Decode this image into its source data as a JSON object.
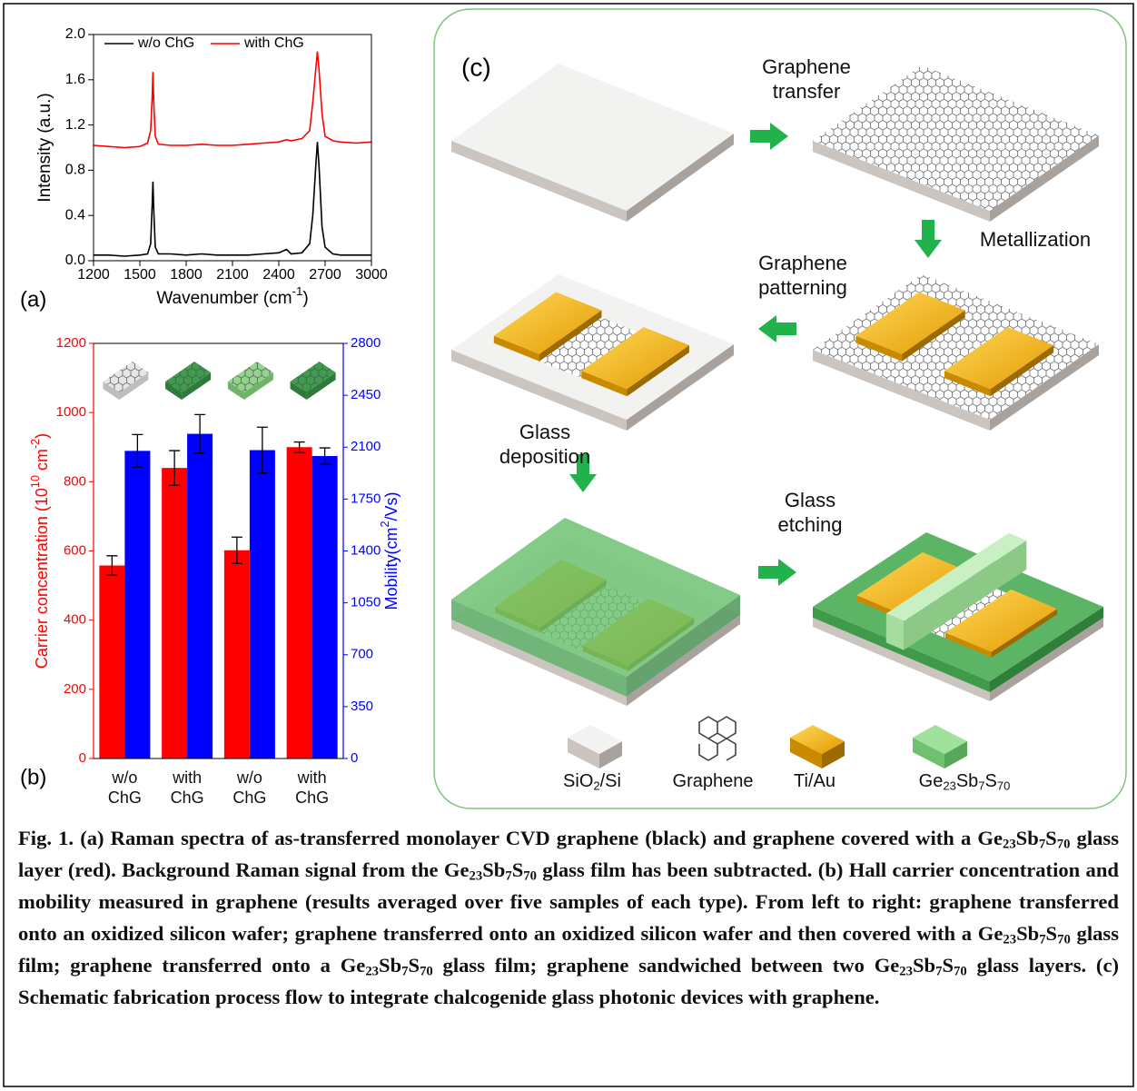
{
  "chart_data": [
    {
      "type": "line",
      "panel_label": "(a)",
      "ylabel": "Intensity (a.u.)",
      "xlabel": [
        "Wavenumber (cm",
        "-1",
        ")"
      ],
      "x": [
        1200,
        1300,
        1400,
        1500,
        1550,
        1570,
        1580,
        1585,
        1590,
        1600,
        1620,
        1700,
        1800,
        1900,
        2000,
        2100,
        2200,
        2300,
        2400,
        2450,
        2480,
        2550,
        2600,
        2620,
        2640,
        2650,
        2660,
        2680,
        2700,
        2750,
        2800,
        2900,
        3000
      ],
      "series": [
        {
          "name": "w/o ChG",
          "color": "#000000",
          "values": [
            0.05,
            0.05,
            0.04,
            0.05,
            0.06,
            0.15,
            0.5,
            0.7,
            0.45,
            0.12,
            0.06,
            0.06,
            0.05,
            0.06,
            0.05,
            0.05,
            0.05,
            0.06,
            0.07,
            0.1,
            0.06,
            0.07,
            0.15,
            0.4,
            0.85,
            1.05,
            0.85,
            0.3,
            0.12,
            0.06,
            0.05,
            0.05,
            0.05
          ]
        },
        {
          "name": "with ChG",
          "color": "#ff0000",
          "values": [
            1.02,
            1.01,
            1.0,
            1.01,
            1.04,
            1.15,
            1.45,
            1.67,
            1.4,
            1.1,
            1.03,
            1.02,
            1.02,
            1.03,
            1.02,
            1.02,
            1.03,
            1.04,
            1.05,
            1.07,
            1.06,
            1.08,
            1.15,
            1.4,
            1.7,
            1.85,
            1.7,
            1.3,
            1.1,
            1.06,
            1.05,
            1.04,
            1.05
          ]
        }
      ],
      "xlim": [
        1200,
        3000
      ],
      "xticks": [
        1200,
        1500,
        1800,
        2100,
        2400,
        2700,
        3000
      ],
      "ylim": [
        0,
        2
      ],
      "yticks": [
        {
          "value": 0,
          "label": "0.0"
        },
        0.4,
        0.8,
        1.2,
        1.6,
        {
          "value": 2,
          "label": "2.0"
        }
      ]
    },
    {
      "type": "bar",
      "panel_label": "(b)",
      "categories": [
        "w/o ChG",
        "with ChG",
        "w/o ChG",
        "with ChG"
      ],
      "ylabel": [
        "Carrier concentration (10",
        "10",
        " cm",
        "-2",
        ")"
      ],
      "y2label": [
        "Mobility(cm",
        "2",
        "/Vs)"
      ],
      "series": [
        {
          "color": "#ff0000",
          "values": [
            558,
            840,
            602,
            900
          ],
          "errors": [
            28,
            50,
            38,
            15
          ]
        },
        {
          "color": "#0000ff",
          "axis": "y2",
          "values": [
            2075,
            2190,
            2080,
            2040
          ],
          "errors": [
            110,
            130,
            155,
            55
          ]
        }
      ],
      "ylim": [
        0,
        1200
      ],
      "yticks": [
        0,
        200,
        400,
        600,
        800,
        1000,
        1200
      ],
      "y2lim": [
        0,
        2800
      ],
      "y2ticks": [
        0,
        350,
        700,
        1050,
        1400,
        1750,
        2100,
        2450,
        2800
      ]
    }
  ],
  "diagram": {
    "panel_label": "(c)",
    "steps": [
      "Graphene transfer",
      "Metallization",
      "Graphene patterning",
      "Glass deposition",
      "Glass etching"
    ],
    "legend": [
      [
        "SiO",
        "2",
        "/Si"
      ],
      [
        "Graphene"
      ],
      [
        "Ti/Au"
      ],
      [
        "Ge",
        "23",
        "Sb",
        "7",
        "S",
        "70"
      ]
    ]
  },
  "caption": [
    "Fig. 1.  (a) Raman spectra of as-transferred monolayer CVD graphene (black) and graphene covered with a Ge",
    "23",
    "Sb",
    "7",
    "S",
    "70",
    " glass layer (red). Background Raman signal from the Ge",
    "23",
    "Sb",
    "7",
    "S",
    "70",
    " glass film has been subtracted. (b) Hall carrier concentration and mobility measured in graphene (results averaged over five samples of each type). From left to right: graphene transferred onto an oxidized silicon wafer; graphene transferred onto an oxidized silicon wafer and then covered with a Ge",
    "23",
    "Sb",
    "7",
    "S",
    "70",
    " glass film; graphene transferred onto a Ge",
    "23",
    "Sb",
    "7",
    "S",
    "70",
    " glass film; graphene sandwiched between two Ge",
    "23",
    "Sb",
    "7",
    "S",
    "70",
    " glass layers. (c) Schematic fabrication process flow to integrate chalcogenide glass photonic devices with graphene."
  ]
}
